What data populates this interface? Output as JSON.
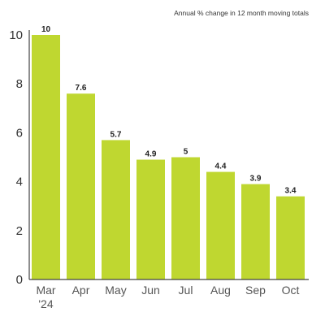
{
  "chart_data": {
    "type": "bar",
    "subtitle": "Annual % change in 12 month moving totals",
    "categories": [
      "Mar",
      "Apr",
      "May",
      "Jun",
      "Jul",
      "Aug",
      "Sep",
      "Oct"
    ],
    "category_sublabels": [
      "'24",
      "",
      "",
      "",
      "",
      "",
      "",
      ""
    ],
    "values": [
      10,
      7.6,
      5.7,
      4.9,
      5,
      4.4,
      3.9,
      3.4
    ],
    "data_labels": [
      "10",
      "7.6",
      "5.7",
      "4.9",
      "5",
      "4.4",
      "3.9",
      "3.4"
    ],
    "yticks": [
      "0",
      "2",
      "4",
      "6",
      "8",
      "10"
    ],
    "ylim": [
      0,
      10
    ],
    "grid": false,
    "bar_color": "#bfd730"
  }
}
